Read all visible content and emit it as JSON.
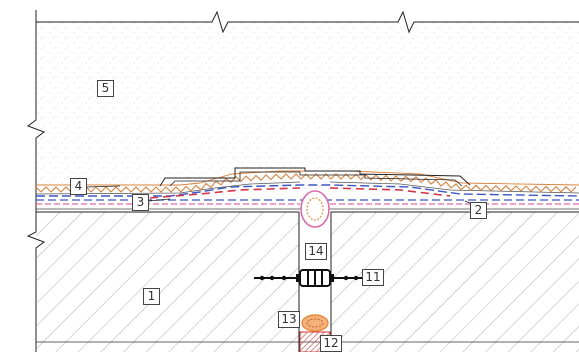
{
  "labels": {
    "l1": "1",
    "l2": "2",
    "l3": "3",
    "l4": "4",
    "l5": "5",
    "l11": "11",
    "l12": "12",
    "l13": "13",
    "l14": "14"
  },
  "colors": {
    "outline": "#222222",
    "hatch": "#9a9a9a",
    "speckle": "#bdbdbd",
    "membrane_orange": "#d9823a",
    "membrane_blue": "#3a56c8",
    "membrane_red": "#d8344a",
    "membrane_pink": "#e06aa8",
    "tube_orange": "#e88d3c",
    "seal_red": "#d43a3a"
  }
}
